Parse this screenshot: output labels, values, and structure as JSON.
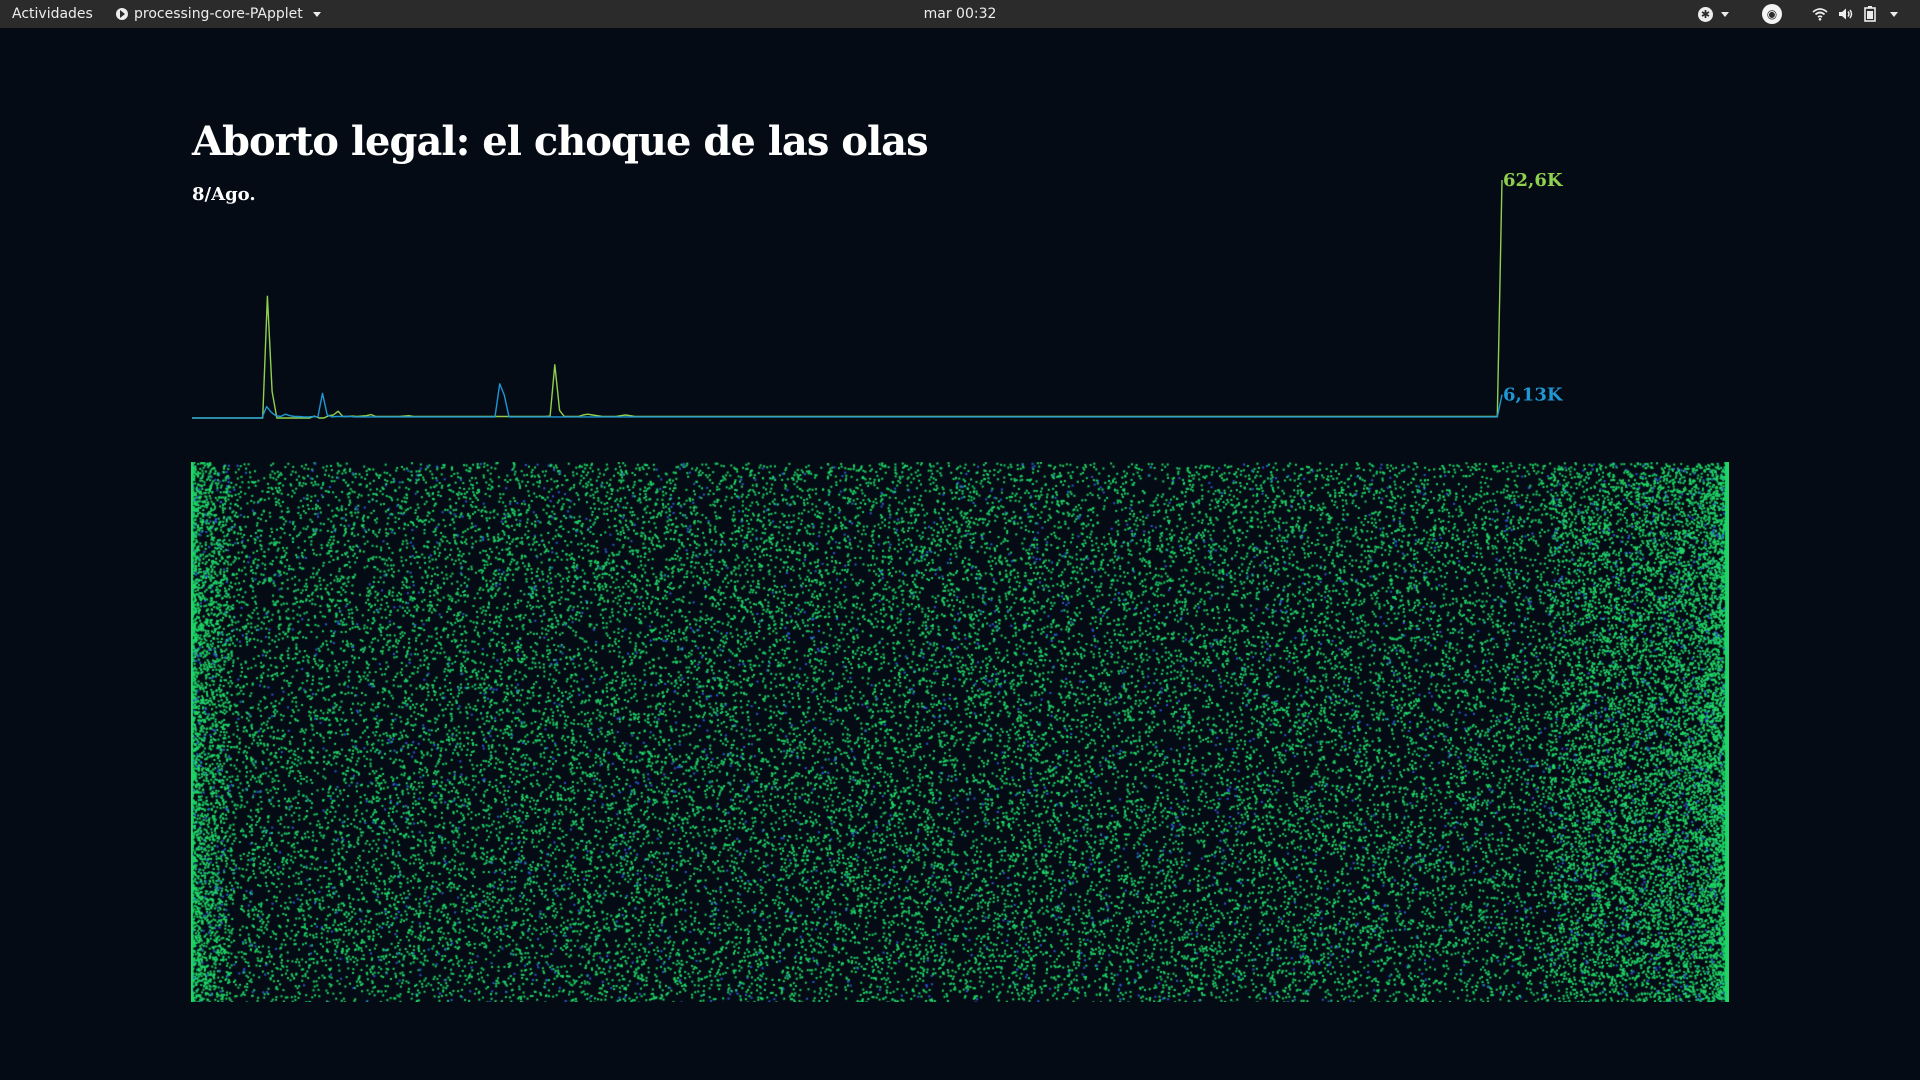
{
  "topbar": {
    "activities": "Actividades",
    "app_name": "processing-core-PApplet",
    "clock": "mar 00:32",
    "icons": [
      "app-icon",
      "accessibility-icon",
      "extension-icon",
      "wifi-icon",
      "volume-icon",
      "battery-icon"
    ]
  },
  "page": {
    "title": "Aborto legal: el choque de las olas",
    "date": "8/Ago."
  },
  "colors": {
    "background": "#050b14",
    "green": "#8fd14f",
    "blue": "#1f97d4",
    "dots_green": "#1fd667",
    "dots_blue": "#2d5ad6"
  },
  "chart_data": {
    "type": "line",
    "title": "Aborto legal: el choque de las olas",
    "xlabel": "",
    "ylabel": "",
    "ylim": [
      0,
      62600
    ],
    "grid": false,
    "legend": "none",
    "series": [
      {
        "color": "#8fd14f",
        "end_label": "62,6K",
        "values": [
          0,
          0,
          0,
          0,
          0,
          0,
          0,
          0,
          0,
          0,
          0,
          0,
          0,
          0,
          0,
          0,
          32000,
          7000,
          0,
          0,
          0,
          0,
          0,
          0,
          0,
          0,
          500,
          0,
          0,
          600,
          800,
          1800,
          400,
          400,
          500,
          400,
          500,
          600,
          900,
          400,
          400,
          400,
          400,
          400,
          400,
          500,
          600,
          400,
          400,
          400,
          400,
          400,
          400,
          400,
          400,
          400,
          400,
          400,
          400,
          400,
          400,
          400,
          400,
          400,
          400,
          400,
          400,
          400,
          400,
          400,
          400,
          400,
          400,
          400,
          400,
          400,
          500,
          14000,
          2000,
          400,
          400,
          400,
          400,
          800,
          1000,
          800,
          600,
          400,
          400,
          400,
          400,
          600,
          800,
          600,
          400,
          400,
          400,
          400,
          400,
          400,
          400,
          400,
          400,
          400,
          400,
          400,
          400,
          400,
          400,
          400,
          400,
          400,
          400,
          400,
          400,
          400,
          400,
          400,
          400,
          400,
          400,
          400,
          400,
          400,
          400,
          400,
          400,
          400,
          400,
          400,
          400,
          400,
          400,
          400,
          400,
          400,
          400,
          400,
          400,
          400,
          400,
          400,
          400,
          400,
          400,
          400,
          400,
          400,
          400,
          400,
          400,
          400,
          400,
          400,
          400,
          400,
          400,
          400,
          400,
          400,
          400,
          400,
          400,
          400,
          400,
          400,
          400,
          400,
          400,
          400,
          400,
          400,
          400,
          400,
          400,
          400,
          400,
          400,
          400,
          400,
          400,
          400,
          400,
          400,
          400,
          400,
          400,
          400,
          400,
          400,
          400,
          400,
          400,
          400,
          400,
          400,
          400,
          400,
          400,
          400,
          400,
          400,
          400,
          400,
          400,
          400,
          400,
          400,
          400,
          400,
          400,
          400,
          400,
          400,
          400,
          400,
          400,
          400,
          400,
          400,
          400,
          400,
          400,
          400,
          400,
          400,
          400,
          400,
          400,
          400,
          400,
          400,
          400,
          400,
          400,
          400,
          400,
          400,
          400,
          400,
          400,
          400,
          400,
          400,
          400,
          400,
          400,
          400,
          400,
          400,
          400,
          400,
          400,
          400,
          400,
          400,
          400,
          400,
          400,
          400,
          400,
          400,
          400,
          400,
          400,
          400,
          400,
          400,
          400,
          400,
          400,
          400,
          400,
          400,
          400,
          400,
          400,
          400,
          62600
        ]
      },
      {
        "color": "#1f97d4",
        "end_label": "6,13K",
        "values": [
          0,
          0,
          0,
          0,
          0,
          0,
          0,
          0,
          0,
          0,
          0,
          0,
          0,
          0,
          0,
          0,
          3000,
          1500,
          600,
          400,
          1000,
          600,
          400,
          400,
          300,
          300,
          400,
          300,
          6500,
          800,
          300,
          400,
          400,
          400,
          400,
          300,
          300,
          300,
          300,
          300,
          300,
          300,
          300,
          300,
          300,
          300,
          300,
          300,
          300,
          300,
          300,
          300,
          300,
          300,
          300,
          300,
          300,
          300,
          300,
          300,
          300,
          300,
          300,
          300,
          300,
          300,
          9000,
          6000,
          300,
          300,
          300,
          300,
          300,
          300,
          300,
          300,
          300,
          300,
          300,
          300,
          300,
          300,
          300,
          300,
          300,
          300,
          300,
          300,
          300,
          300,
          300,
          300,
          300,
          300,
          300,
          300,
          300,
          300,
          300,
          300,
          300,
          300,
          300,
          300,
          300,
          300,
          300,
          300,
          300,
          300,
          300,
          300,
          300,
          300,
          300,
          300,
          300,
          300,
          300,
          300,
          300,
          300,
          300,
          300,
          300,
          300,
          300,
          300,
          300,
          300,
          300,
          300,
          300,
          300,
          300,
          300,
          300,
          300,
          300,
          300,
          300,
          300,
          300,
          300,
          300,
          300,
          300,
          300,
          300,
          300,
          300,
          300,
          300,
          300,
          300,
          300,
          300,
          300,
          300,
          300,
          300,
          300,
          300,
          300,
          300,
          300,
          300,
          300,
          300,
          300,
          300,
          300,
          300,
          300,
          300,
          300,
          300,
          300,
          300,
          300,
          300,
          300,
          300,
          300,
          300,
          300,
          300,
          300,
          300,
          300,
          300,
          300,
          300,
          300,
          300,
          300,
          300,
          300,
          300,
          300,
          300,
          300,
          300,
          300,
          300,
          300,
          300,
          300,
          300,
          300,
          300,
          300,
          300,
          300,
          300,
          300,
          300,
          300,
          300,
          300,
          300,
          300,
          300,
          300,
          300,
          300,
          300,
          300,
          300,
          300,
          300,
          300,
          300,
          300,
          300,
          300,
          300,
          300,
          300,
          300,
          300,
          300,
          300,
          300,
          300,
          300,
          300,
          300,
          300,
          300,
          300,
          300,
          300,
          300,
          300,
          300,
          300,
          300,
          300,
          300,
          300,
          300,
          300,
          300,
          300,
          300,
          300,
          300,
          300,
          300,
          300,
          300,
          300,
          300,
          300,
          300,
          300,
          300,
          300,
          300,
          300,
          6130
        ]
      }
    ]
  }
}
